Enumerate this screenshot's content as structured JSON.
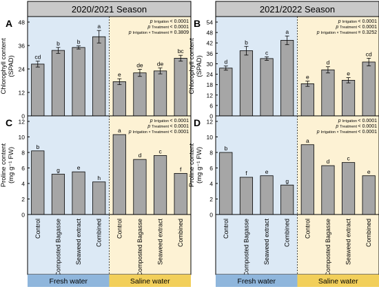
{
  "seasons": [
    "2020/2021 Season",
    "2021/2022 Season"
  ],
  "water_groups": [
    "Fresh water",
    "Saline water"
  ],
  "categories": [
    "Control",
    "Composted Bagasse",
    "Seaweed extract",
    "Combined",
    "Control",
    "Composted Bagasse",
    "Seaweed extract",
    "Combined"
  ],
  "colors": {
    "fresh_bg": "#dce9f5",
    "saline_bg": "#fdf2d4",
    "fresh_band": "#8fb6dc",
    "saline_band": "#f2cf5a",
    "bar": "#a6a6a6",
    "header": "#c9c9c9"
  },
  "chart_data": [
    {
      "panel": "A",
      "type": "bar",
      "ylabel_lines": [
        "Chlorophyll content",
        "(SPAD)"
      ],
      "ylim": [
        0,
        48
      ],
      "ticks": [
        0,
        12,
        24,
        36,
        48
      ],
      "values": [
        26.5,
        33.5,
        35,
        40.5,
        17.5,
        22,
        23,
        29.5
      ],
      "errors": [
        1.5,
        1.5,
        0.8,
        3.2,
        1.5,
        1.8,
        1.5,
        1.5
      ],
      "letters": [
        "cd",
        "b",
        "b",
        "a",
        "e",
        "de",
        "de",
        "bc"
      ],
      "stats": [
        {
          "sub": "Irrigation",
          "val": "< 0.0001"
        },
        {
          "sub": "Treatment",
          "val": "< 0.0001"
        },
        {
          "sub": "Irrigation × Treatment",
          "val": "= 0.3809"
        }
      ]
    },
    {
      "panel": "B",
      "type": "bar",
      "ylabel_lines": [
        "Chlorophyll content",
        "(SPAD)"
      ],
      "ylim": [
        0,
        54
      ],
      "ticks": [
        0,
        6,
        12,
        18,
        24,
        30,
        36,
        42,
        48,
        54
      ],
      "values": [
        27.5,
        37.5,
        33,
        43.5,
        18.5,
        26.5,
        20.5,
        31
      ],
      "errors": [
        1.2,
        2.5,
        1,
        2.5,
        1.5,
        1.8,
        1.5,
        2.2
      ],
      "letters": [
        "d",
        "b",
        "c",
        "a",
        "e",
        "d",
        "e",
        "cd"
      ],
      "stats": [
        {
          "sub": "Irrigation",
          "val": "< 0.0001"
        },
        {
          "sub": "Treatment",
          "val": "< 0.0001"
        },
        {
          "sub": "Irrigation × Treatment",
          "val": "= 0.3252"
        }
      ]
    },
    {
      "panel": "C",
      "type": "bar",
      "ylabel_lines": [
        "Proline content",
        "(mg g⁻¹ FW)"
      ],
      "ylim": [
        0,
        12
      ],
      "ticks": [
        0,
        2,
        4,
        6,
        8,
        10,
        12
      ],
      "values": [
        8.2,
        5.2,
        5.5,
        4.2,
        10.3,
        7.1,
        7.6,
        5.3
      ],
      "errors": [
        0,
        0,
        0,
        0,
        0,
        0,
        0,
        0
      ],
      "letters": [
        "b",
        "g",
        "e",
        "h",
        "a",
        "d",
        "c",
        "f"
      ],
      "stats": [
        {
          "sub": "Irrigation",
          "val": "< 0.0001"
        },
        {
          "sub": "Treatment",
          "val": "< 0.0001"
        },
        {
          "sub": "Irrigation × Treatment",
          "val": "< 0.0001"
        }
      ]
    },
    {
      "panel": "D",
      "type": "bar",
      "ylabel_lines": [
        "Proline content",
        "(mg g⁻¹ FW)"
      ],
      "ylim": [
        0,
        12
      ],
      "ticks": [
        0,
        2,
        4,
        6,
        8,
        10,
        12
      ],
      "values": [
        8,
        4.8,
        5,
        3.8,
        9,
        6.3,
        6.7,
        5
      ],
      "errors": [
        0,
        0,
        0,
        0,
        0,
        0,
        0,
        0
      ],
      "letters": [
        "b",
        "f",
        "e",
        "g",
        "a",
        "d",
        "c",
        "e"
      ],
      "stats": [
        {
          "sub": "Irrigation",
          "val": "< 0.0001"
        },
        {
          "sub": "Treatment",
          "val": "< 0.0001"
        },
        {
          "sub": "Irrigation × Treatment",
          "val": "< 0.0001"
        }
      ]
    }
  ]
}
